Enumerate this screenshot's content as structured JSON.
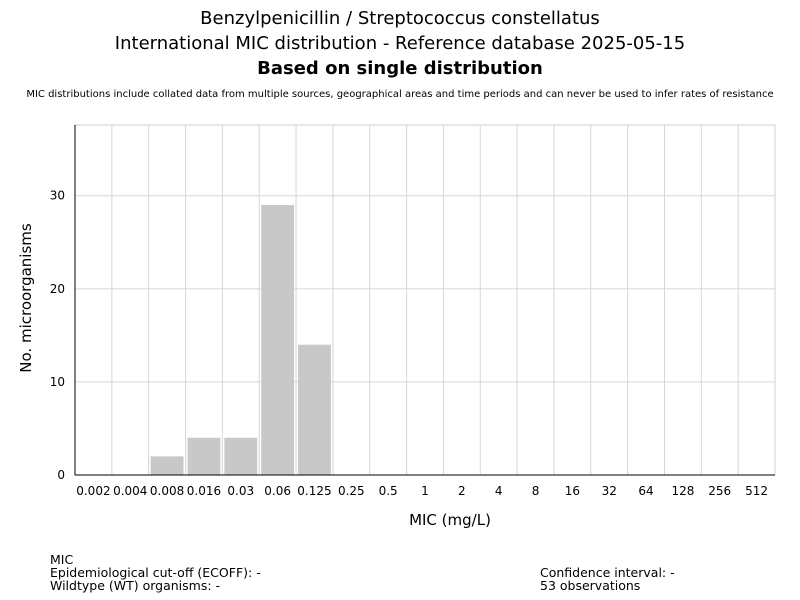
{
  "header": {
    "title_line1": "Benzylpenicillin / Streptococcus constellatus",
    "title_line2": "International MIC distribution - Reference database 2025-05-15",
    "title_line3": "Based on single distribution",
    "disclaimer": "MIC distributions include collated data from multiple sources, geographical areas and time periods and can never be used to infer rates of resistance"
  },
  "chart_data": {
    "type": "bar",
    "categories": [
      "0.002",
      "0.004",
      "0.008",
      "0.016",
      "0.03",
      "0.06",
      "0.125",
      "0.25",
      "0.5",
      "1",
      "2",
      "4",
      "8",
      "16",
      "32",
      "64",
      "128",
      "256",
      "512"
    ],
    "values": [
      0,
      0,
      2,
      4,
      4,
      29,
      14,
      0,
      0,
      0,
      0,
      0,
      0,
      0,
      0,
      0,
      0,
      0,
      0
    ],
    "xlabel": "MIC (mg/L)",
    "ylabel": "No. microorganisms",
    "ylim": [
      0,
      37.6
    ],
    "yticks": [
      0,
      10,
      20,
      30
    ],
    "grid": true,
    "bar_color": "#c8c8c8"
  },
  "footer": {
    "mic_label": "MIC",
    "ecoff": "Epidemiological cut-off (ECOFF): -",
    "wildtype": "Wildtype (WT) organisms:  -",
    "confidence": "Confidence interval: -",
    "observations": "53 observations"
  }
}
